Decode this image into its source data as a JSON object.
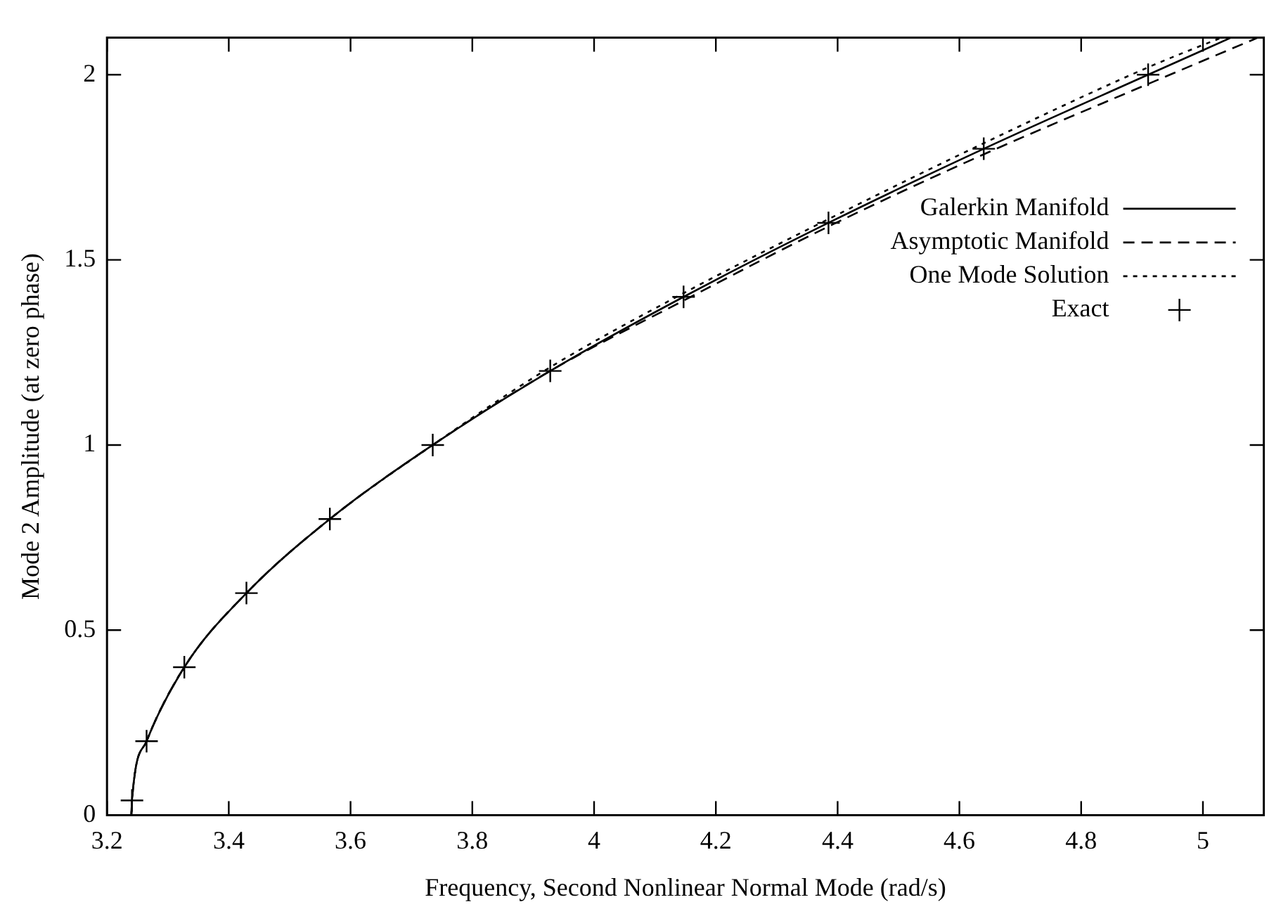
{
  "chart_data": {
    "type": "line",
    "xlabel": "Frequency, Second Nonlinear Normal Mode (rad/s)",
    "ylabel": "Mode 2 Amplitude (at zero phase)",
    "xlim": [
      3.2,
      5.1
    ],
    "ylim": [
      0,
      2.1
    ],
    "xticks": [
      3.2,
      3.4,
      3.6,
      3.8,
      4,
      4.2,
      4.4,
      4.6,
      4.8,
      5
    ],
    "yticks": [
      0,
      0.5,
      1,
      1.5,
      2
    ],
    "grid": false,
    "legend": "right",
    "series": [
      {
        "name": "Galerkin Manifold",
        "type": "line",
        "line_style": "solid",
        "marker": "none",
        "color": "#000000",
        "x": [
          3.24,
          3.241,
          3.265,
          3.327,
          3.429,
          3.566,
          3.735,
          3.928,
          4.147,
          4.385,
          4.64,
          4.91,
          5.046
        ],
        "values": [
          0,
          0.04,
          0.2,
          0.4,
          0.6,
          0.8,
          1.0,
          1.2,
          1.4,
          1.6,
          1.8,
          2.0,
          2.1
        ]
      },
      {
        "name": "Asymptotic Manifold",
        "type": "line",
        "line_style": "dashed",
        "marker": "none",
        "color": "#000000",
        "x": [
          3.24,
          3.241,
          3.265,
          3.327,
          3.429,
          3.566,
          3.735,
          3.928,
          4.147,
          4.385,
          4.64,
          4.91,
          5.09
        ],
        "values": [
          0,
          0.04,
          0.2,
          0.4,
          0.6,
          0.8,
          1.0,
          1.2,
          1.39,
          1.59,
          1.785,
          1.975,
          2.1
        ]
      },
      {
        "name": "One Mode Solution",
        "type": "line",
        "line_style": "dotted",
        "marker": "none",
        "color": "#000000",
        "x": [
          3.24,
          3.241,
          3.265,
          3.327,
          3.429,
          3.566,
          3.735,
          3.928,
          4.147,
          4.385,
          4.64,
          4.91,
          5.03
        ],
        "values": [
          0,
          0.04,
          0.2,
          0.4,
          0.6,
          0.8,
          1.0,
          1.21,
          1.41,
          1.61,
          1.815,
          2.02,
          2.1
        ]
      },
      {
        "name": "Exact",
        "type": "scatter",
        "marker": "cross",
        "color": "#000000",
        "x": [
          3.241,
          3.265,
          3.327,
          3.429,
          3.566,
          3.735,
          3.928,
          4.147,
          4.385,
          4.64,
          4.91
        ],
        "values": [
          0.04,
          0.2,
          0.4,
          0.6,
          0.8,
          1.0,
          1.2,
          1.4,
          1.6,
          1.8,
          2.0
        ]
      }
    ]
  }
}
